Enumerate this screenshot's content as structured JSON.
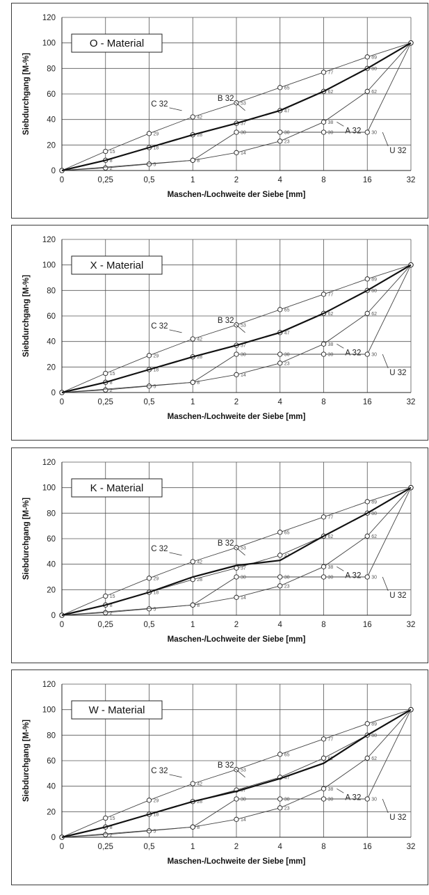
{
  "chart_data": [
    {
      "type": "line",
      "title": "O - Material",
      "xlabel": "Maschen-/Lochweite der Siebe [mm]",
      "ylabel": "Siebdurchgang [M-%]",
      "categories": [
        "0",
        "0,25",
        "0,5",
        "1",
        "2",
        "4",
        "8",
        "16",
        "32"
      ],
      "ylim": [
        0,
        120
      ],
      "yticks": [
        "0",
        "20",
        "40",
        "60",
        "80",
        "100",
        "120"
      ],
      "grid": true,
      "series": [
        {
          "name": "C 32",
          "values": [
            0,
            15,
            29,
            42,
            53,
            65,
            77,
            89,
            100
          ],
          "labels": [
            "",
            "15",
            "29",
            "42",
            "53",
            "65",
            "77",
            "89",
            ""
          ]
        },
        {
          "name": "B 32",
          "values": [
            0,
            8,
            18,
            28,
            37,
            47,
            62,
            80,
            100
          ],
          "labels": [
            "",
            "8",
            "18",
            "28",
            "37",
            "47",
            "62",
            "80",
            ""
          ]
        },
        {
          "name": "A 32",
          "values": [
            0,
            2,
            5,
            8,
            14,
            23,
            38,
            62,
            100
          ],
          "labels": [
            "",
            "2",
            "5",
            "8",
            "14",
            "23",
            "38",
            "62",
            ""
          ]
        },
        {
          "name": "U 32",
          "values": [
            0,
            null,
            null,
            8,
            30,
            30,
            30,
            30,
            100
          ],
          "labels": [
            "",
            "",
            "",
            "",
            "30",
            "30",
            "30",
            "30",
            ""
          ]
        }
      ],
      "actual": {
        "values": [
          0,
          8,
          18,
          28,
          37,
          47,
          62,
          80,
          100
        ]
      }
    },
    {
      "type": "line",
      "title": "X - Material",
      "xlabel": "Maschen-/Lochweite der Siebe [mm]",
      "ylabel": "Siebdurchgang [M-%]",
      "categories": [
        "0",
        "0,25",
        "0,5",
        "1",
        "2",
        "4",
        "8",
        "16",
        "32"
      ],
      "ylim": [
        0,
        120
      ],
      "yticks": [
        "0",
        "20",
        "40",
        "60",
        "80",
        "100",
        "120"
      ],
      "grid": true,
      "series": [
        {
          "name": "C 32",
          "values": [
            0,
            15,
            29,
            42,
            53,
            65,
            77,
            89,
            100
          ],
          "labels": [
            "",
            "15",
            "29",
            "42",
            "53",
            "65",
            "77",
            "89",
            ""
          ]
        },
        {
          "name": "B 32",
          "values": [
            0,
            8,
            18,
            28,
            37,
            47,
            62,
            80,
            100
          ],
          "labels": [
            "",
            "8",
            "18",
            "28",
            "37",
            "47",
            "62",
            "80",
            ""
          ]
        },
        {
          "name": "A 32",
          "values": [
            0,
            2,
            5,
            8,
            14,
            23,
            38,
            62,
            100
          ],
          "labels": [
            "",
            "2",
            "5",
            "8",
            "14",
            "23",
            "38",
            "62",
            ""
          ]
        },
        {
          "name": "U 32",
          "values": [
            0,
            null,
            null,
            8,
            30,
            30,
            30,
            30,
            100
          ],
          "labels": [
            "",
            "",
            "",
            "",
            "30",
            "30",
            "30",
            "30",
            ""
          ]
        }
      ],
      "actual": {
        "values": [
          0,
          8,
          18,
          28,
          37,
          47,
          62,
          80,
          100
        ]
      }
    },
    {
      "type": "line",
      "title": "K - Material",
      "xlabel": "Maschen-/Lochweite der Siebe [mm]",
      "ylabel": "Siebdurchgang [M-%]",
      "categories": [
        "0",
        "0,25",
        "0,5",
        "1",
        "2",
        "4",
        "8",
        "16",
        "32"
      ],
      "ylim": [
        0,
        120
      ],
      "yticks": [
        "0",
        "20",
        "40",
        "60",
        "80",
        "100",
        "120"
      ],
      "grid": true,
      "series": [
        {
          "name": "C 32",
          "values": [
            0,
            15,
            29,
            42,
            53,
            65,
            77,
            89,
            100
          ],
          "labels": [
            "",
            "15",
            "29",
            "42",
            "53",
            "65",
            "77",
            "89",
            ""
          ]
        },
        {
          "name": "B 32",
          "values": [
            0,
            8,
            18,
            28,
            37,
            47,
            62,
            80,
            100
          ],
          "labels": [
            "",
            "8",
            "18",
            "28",
            "37",
            "47",
            "62",
            "80",
            ""
          ]
        },
        {
          "name": "A 32",
          "values": [
            0,
            2,
            5,
            8,
            14,
            23,
            38,
            62,
            100
          ],
          "labels": [
            "",
            "2",
            "5",
            "8",
            "14",
            "23",
            "38",
            "62",
            ""
          ]
        },
        {
          "name": "U 32",
          "values": [
            0,
            null,
            null,
            8,
            30,
            30,
            30,
            30,
            100
          ],
          "labels": [
            "",
            "",
            "",
            "",
            "30",
            "30",
            "30",
            "30",
            ""
          ]
        }
      ],
      "actual": {
        "values": [
          0,
          8,
          18,
          30,
          39,
          43,
          62,
          80,
          100
        ]
      }
    },
    {
      "type": "line",
      "title": "W - Material",
      "xlabel": "Maschen-/Lochweite der Siebe [mm]",
      "ylabel": "Siebdurchgang [M-%]",
      "categories": [
        "0",
        "0,25",
        "0,5",
        "1",
        "2",
        "4",
        "8",
        "16",
        "32"
      ],
      "ylim": [
        0,
        120
      ],
      "yticks": [
        "0",
        "20",
        "40",
        "60",
        "80",
        "100",
        "120"
      ],
      "grid": true,
      "series": [
        {
          "name": "C 32",
          "values": [
            0,
            15,
            29,
            42,
            53,
            65,
            77,
            89,
            100
          ],
          "labels": [
            "",
            "15",
            "29",
            "42",
            "53",
            "65",
            "77",
            "89",
            ""
          ]
        },
        {
          "name": "B 32",
          "values": [
            0,
            8,
            18,
            28,
            37,
            47,
            62,
            80,
            100
          ],
          "labels": [
            "",
            "8",
            "18",
            "28",
            "37",
            "47",
            "62",
            "80",
            ""
          ]
        },
        {
          "name": "A 32",
          "values": [
            0,
            2,
            5,
            8,
            14,
            23,
            38,
            62,
            100
          ],
          "labels": [
            "",
            "2",
            "5",
            "8",
            "14",
            "23",
            "38",
            "62",
            ""
          ]
        },
        {
          "name": "U 32",
          "values": [
            0,
            null,
            null,
            8,
            30,
            30,
            30,
            30,
            100
          ],
          "labels": [
            "",
            "",
            "",
            "",
            "30",
            "30",
            "30",
            "30",
            ""
          ]
        }
      ],
      "actual": {
        "values": [
          0,
          8,
          18,
          28,
          36,
          46,
          58,
          80,
          100
        ]
      }
    }
  ]
}
